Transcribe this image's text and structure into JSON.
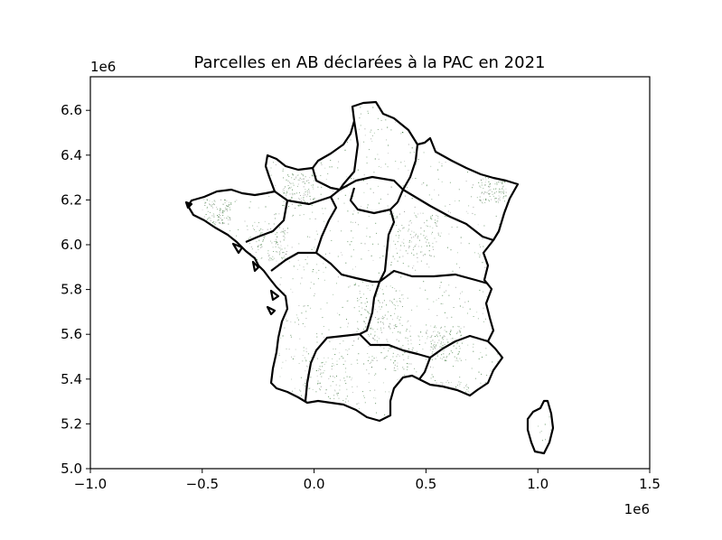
{
  "chart_data": {
    "type": "map",
    "title": "Parcelles en AB déclarées à la PAC en 2021",
    "xlabel": "",
    "ylabel": "",
    "x_offset_label": "1e6",
    "y_offset_label": "1e6",
    "xlim": [
      -1.0,
      1.5
    ],
    "ylim": [
      5.0,
      6.75
    ],
    "x_ticks": [
      -1.0,
      -0.5,
      0.0,
      0.5,
      1.0,
      1.5
    ],
    "x_tick_labels": [
      "−1.0",
      "−0.5",
      "0.0",
      "0.5",
      "1.0",
      "1.5"
    ],
    "y_ticks": [
      5.0,
      5.2,
      5.4,
      5.6,
      5.8,
      6.0,
      6.2,
      6.4,
      6.6
    ],
    "y_tick_labels": [
      "5.0",
      "5.2",
      "5.4",
      "5.6",
      "5.8",
      "6.0",
      "6.2",
      "6.4",
      "6.6"
    ],
    "grid": false,
    "parcel_color": "#2d6a2d",
    "boundary_color": "#000000"
  }
}
